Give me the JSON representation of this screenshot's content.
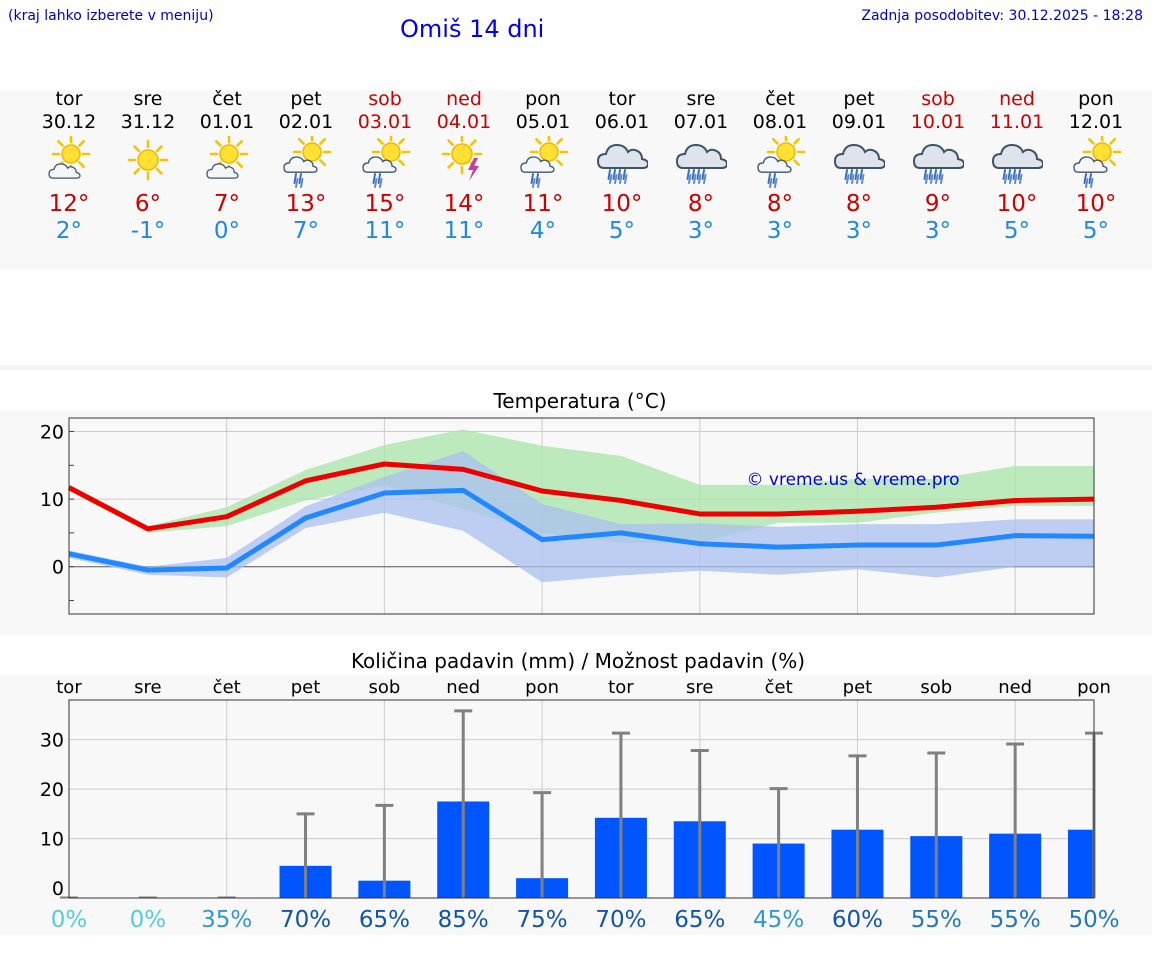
{
  "header": {
    "hint": "(kraj lahko izberete v meniju)",
    "title": "Omiš 14 dni",
    "updated": "Zadnja posodobitev: 30.12.2025 - 18:28"
  },
  "days": [
    {
      "name": "tor",
      "date": "30.12",
      "weekend": false,
      "icon": "sun-cloud-icon",
      "tmax": "12°",
      "tmin": "2°"
    },
    {
      "name": "sre",
      "date": "31.12",
      "weekend": false,
      "icon": "sun-icon",
      "tmax": "6°",
      "tmin": "-1°"
    },
    {
      "name": "čet",
      "date": "01.01",
      "weekend": false,
      "icon": "sun-cloud-icon",
      "tmax": "7°",
      "tmin": "0°"
    },
    {
      "name": "pet",
      "date": "02.01",
      "weekend": false,
      "icon": "sun-cloud-rain-icon",
      "tmax": "13°",
      "tmin": "7°"
    },
    {
      "name": "sob",
      "date": "03.01",
      "weekend": true,
      "icon": "sun-cloud-rain-icon",
      "tmax": "15°",
      "tmin": "11°"
    },
    {
      "name": "ned",
      "date": "04.01",
      "weekend": true,
      "icon": "sun-thunder-icon",
      "tmax": "14°",
      "tmin": "11°"
    },
    {
      "name": "pon",
      "date": "05.01",
      "weekend": false,
      "icon": "sun-cloud-rain-icon",
      "tmax": "11°",
      "tmin": "4°"
    },
    {
      "name": "tor",
      "date": "06.01",
      "weekend": false,
      "icon": "cloud-rain-icon",
      "tmax": "10°",
      "tmin": "5°"
    },
    {
      "name": "sre",
      "date": "07.01",
      "weekend": false,
      "icon": "cloud-rain-icon",
      "tmax": "8°",
      "tmin": "3°"
    },
    {
      "name": "čet",
      "date": "08.01",
      "weekend": false,
      "icon": "sun-cloud-rain-icon",
      "tmax": "8°",
      "tmin": "3°"
    },
    {
      "name": "pet",
      "date": "09.01",
      "weekend": false,
      "icon": "cloud-rain-icon",
      "tmax": "8°",
      "tmin": "3°"
    },
    {
      "name": "sob",
      "date": "10.01",
      "weekend": true,
      "icon": "cloud-rain-icon",
      "tmax": "9°",
      "tmin": "3°"
    },
    {
      "name": "ned",
      "date": "11.01",
      "weekend": true,
      "icon": "cloud-rain-icon",
      "tmax": "10°",
      "tmin": "5°"
    },
    {
      "name": "pon",
      "date": "12.01",
      "weekend": false,
      "icon": "sun-cloud-rain-icon",
      "tmax": "10°",
      "tmin": "5°"
    }
  ],
  "colors": {
    "weekday": "#000000",
    "weekend": "#cc0000",
    "tmax_line": "#ee0000",
    "tmin_line": "#2288ff",
    "band_max": "#a8e6a8",
    "band_min": "#aac0f0",
    "bar": "#0055ff",
    "error_bar": "#808080"
  },
  "chart_data": [
    {
      "type": "line",
      "title": "Temperatura (°C)",
      "watermark": "© vreme.us & vreme.pro",
      "ylim": [
        -7,
        22
      ],
      "yticks": [
        0,
        10,
        20
      ],
      "x": [
        0,
        1,
        2,
        3,
        4,
        5,
        6,
        7,
        8,
        9,
        10,
        11,
        12,
        13
      ],
      "series": [
        {
          "name": "max",
          "values": [
            11.7,
            5.6,
            7.4,
            12.7,
            15.2,
            14.4,
            11.2,
            9.8,
            7.8,
            7.8,
            8.2,
            8.8,
            9.8,
            10.0
          ]
        },
        {
          "name": "min",
          "values": [
            1.9,
            -0.5,
            -0.2,
            7.2,
            10.9,
            11.3,
            4.0,
            5.0,
            3.4,
            2.9,
            3.2,
            3.2,
            4.6,
            4.5
          ]
        }
      ],
      "max_range": {
        "low": [
          11.2,
          5.0,
          6.0,
          9.8,
          12.0,
          8.5,
          5.0,
          3.5,
          3.5,
          6.5,
          6.5,
          8.0,
          9.0,
          9.0
        ],
        "high": [
          12.2,
          6.0,
          8.8,
          14.3,
          18.0,
          20.3,
          17.9,
          16.4,
          12.1,
          12.1,
          13.0,
          13.0,
          14.9,
          14.9
        ]
      },
      "min_range": {
        "low": [
          1.3,
          -1.2,
          -1.6,
          5.7,
          8.0,
          5.3,
          -2.3,
          -1.3,
          -0.6,
          -1.2,
          -0.4,
          -1.6,
          0.0,
          0.0
        ],
        "high": [
          2.4,
          0.0,
          1.3,
          8.9,
          13.3,
          17.1,
          9.3,
          6.3,
          6.4,
          5.9,
          6.3,
          6.3,
          7.0,
          7.0
        ]
      }
    },
    {
      "type": "bar",
      "title": "Količina padavin (mm) / Možnost padavin (%)",
      "categories": [
        "tor",
        "sre",
        "čet",
        "pet",
        "sob",
        "ned",
        "pon",
        "tor",
        "sre",
        "čet",
        "pet",
        "sob",
        "ned",
        "pon"
      ],
      "ylim": [
        -2,
        38
      ],
      "yticks": [
        0,
        10,
        20,
        30
      ],
      "values": [
        0,
        0,
        0,
        4.5,
        1.5,
        17.5,
        2.0,
        14.2,
        13.5,
        9.0,
        11.8,
        10.5,
        11.0,
        11.8
      ],
      "error_max": [
        0,
        0,
        0,
        15.0,
        16.7,
        35.8,
        19.3,
        31.3,
        27.8,
        20.1,
        26.7,
        27.3,
        29.1,
        31.3
      ],
      "probability": [
        "0%",
        "0%",
        "35%",
        "70%",
        "65%",
        "85%",
        "75%",
        "70%",
        "65%",
        "45%",
        "60%",
        "55%",
        "55%",
        "50%"
      ],
      "probability_values": [
        0,
        0,
        35,
        70,
        65,
        85,
        75,
        70,
        65,
        45,
        60,
        55,
        55,
        50
      ]
    }
  ]
}
